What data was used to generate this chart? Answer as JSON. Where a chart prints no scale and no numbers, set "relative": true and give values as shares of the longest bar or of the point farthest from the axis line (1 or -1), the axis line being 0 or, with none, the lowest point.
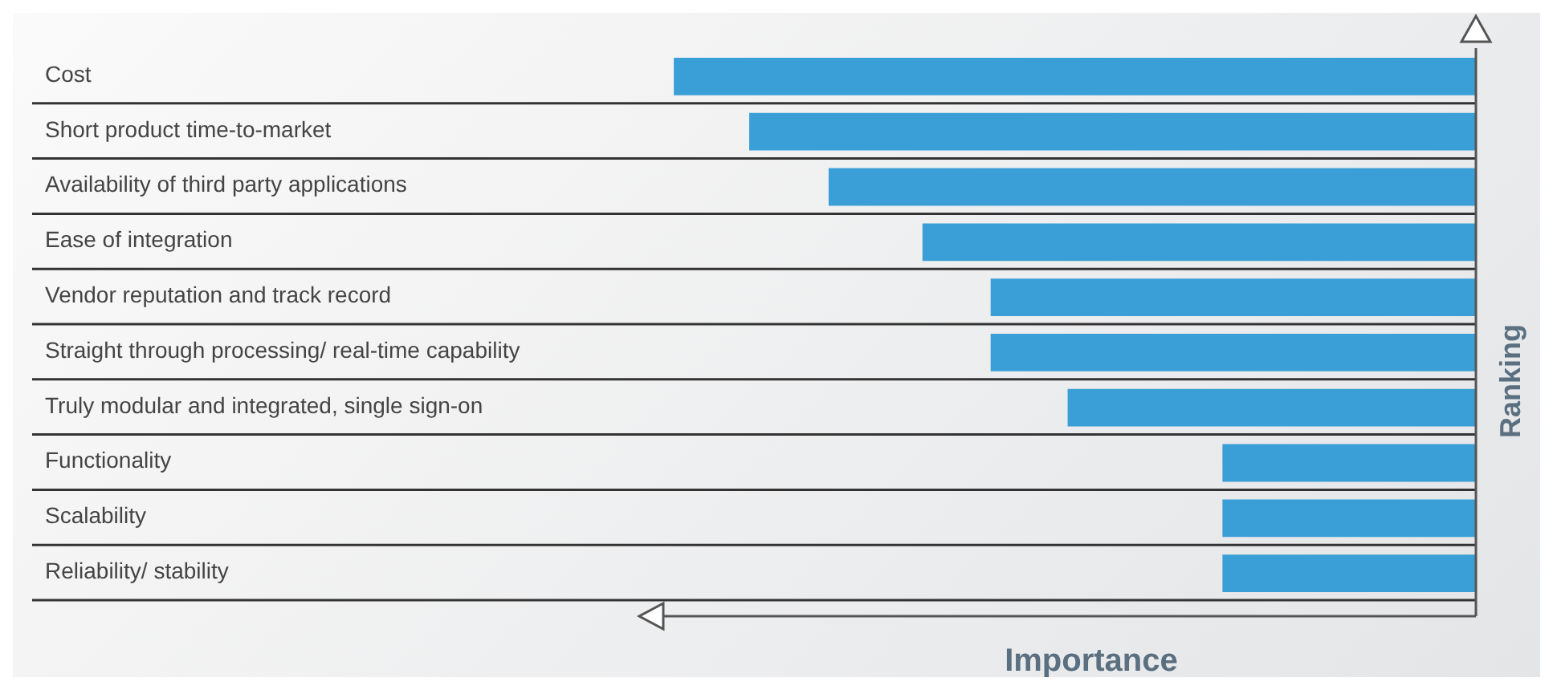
{
  "chart_data": {
    "type": "bar",
    "orientation": "horizontal",
    "relative": true,
    "categories": [
      "Cost",
      "Short product time-to-market",
      "Availability of third party applications",
      "Ease of integration",
      "Vendor reputation and track record",
      "Straight through processing/ real-time capability",
      "Truly modular and integrated, single sign-on",
      "Functionality",
      "Scalability",
      "Reliability/ stability"
    ],
    "values": [
      1,
      0.906,
      0.807,
      0.69,
      0.605,
      0.605,
      0.509,
      0.316,
      0.316,
      0.316
    ],
    "color": "#3a9fd6",
    "xlabel": "Importance",
    "ylabel": "Ranking",
    "grid": "y",
    "legend": false
  }
}
